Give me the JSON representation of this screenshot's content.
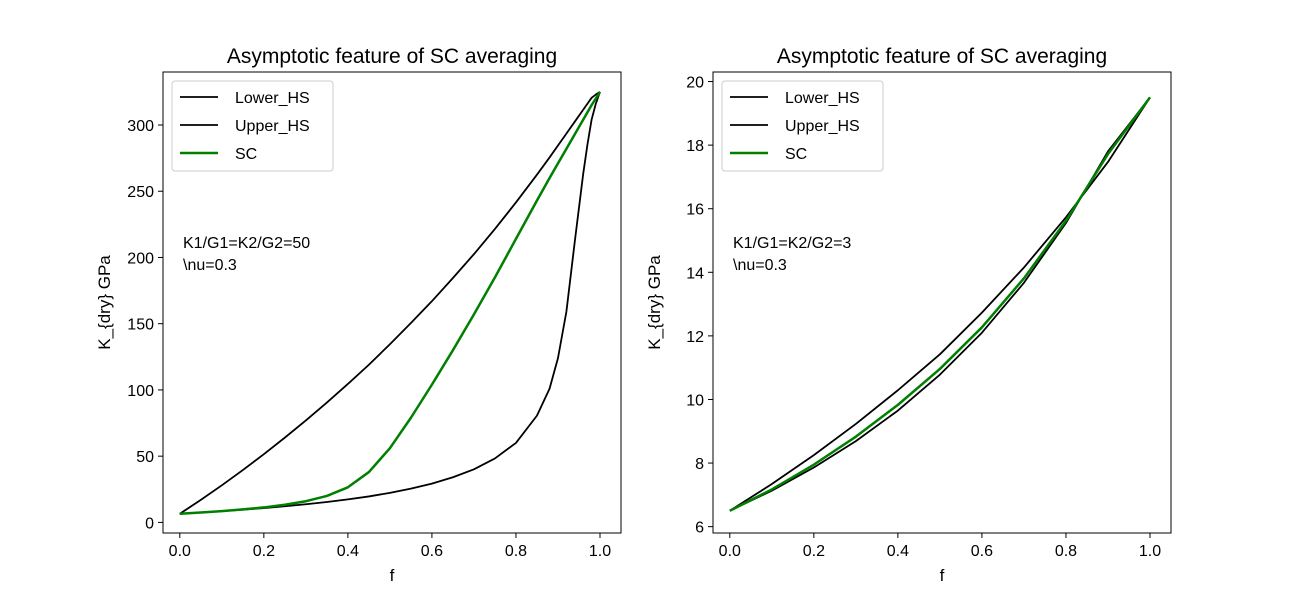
{
  "colors": {
    "lower_hs": "#000000",
    "upper_hs": "#000000",
    "sc": "#008000"
  },
  "chart_data": [
    {
      "type": "line",
      "title": "Asymptotic feature of SC averaging",
      "xlabel": "f",
      "ylabel": "K_{dry} GPa",
      "xlim": [
        -0.04,
        1.05
      ],
      "ylim": [
        -8,
        340
      ],
      "xticks": [
        "0.0",
        "0.2",
        "0.4",
        "0.6",
        "0.8",
        "1.0"
      ],
      "yticks": [
        "0",
        "50",
        "100",
        "150",
        "200",
        "250",
        "300"
      ],
      "legend_position": "upper-left",
      "annotation": [
        "K1/G1=K2/G2=50",
        "\\nu=0.3"
      ],
      "x": [
        0.0,
        0.05,
        0.1,
        0.15,
        0.2,
        0.25,
        0.3,
        0.35,
        0.4,
        0.45,
        0.5,
        0.55,
        0.6,
        0.65,
        0.7,
        0.75,
        0.8,
        0.85,
        0.88,
        0.9,
        0.92,
        0.94,
        0.96,
        0.97,
        0.98,
        0.99,
        1.0
      ],
      "series": [
        {
          "name": "Lower_HS",
          "values": [
            6.5,
            7.5,
            8.5,
            9.6,
            10.8,
            12.2,
            13.7,
            15.4,
            17.4,
            19.6,
            22.3,
            25.5,
            29.3,
            34.1,
            40.1,
            48.3,
            60.0,
            80.6,
            101,
            124,
            159,
            212,
            263,
            285,
            304,
            316,
            325
          ]
        },
        {
          "name": "Upper_HS",
          "values": [
            6.5,
            17.0,
            28.0,
            39.5,
            51.5,
            64.0,
            77.0,
            90.5,
            104.5,
            119.0,
            134.5,
            150.5,
            167.0,
            184.5,
            202.5,
            221.5,
            241.5,
            262.5,
            275.5,
            284.5,
            293.5,
            302.5,
            311.5,
            316.0,
            320.5,
            323.0,
            325
          ]
        },
        {
          "name": "SC",
          "values": [
            6.5,
            7.5,
            8.5,
            9.8,
            11.3,
            13.3,
            16.0,
            20.0,
            26.5,
            38.0,
            56.0,
            79.0,
            104.0,
            130.0,
            157.0,
            185.0,
            214.0,
            243.0,
            260.0,
            271.0,
            282.0,
            293.0,
            304.0,
            309.5,
            315.0,
            320.0,
            325
          ]
        }
      ]
    },
    {
      "type": "line",
      "title": "Asymptotic feature of SC averaging",
      "xlabel": "f",
      "ylabel": "K_{dry} GPa",
      "xlim": [
        -0.04,
        1.05
      ],
      "ylim": [
        5.8,
        20.3
      ],
      "xticks": [
        "0.0",
        "0.2",
        "0.4",
        "0.6",
        "0.8",
        "1.0"
      ],
      "yticks": [
        "6",
        "8",
        "10",
        "12",
        "14",
        "16",
        "18",
        "20"
      ],
      "legend_position": "upper-left",
      "annotation": [
        "K1/G1=K2/G2=3",
        "\\nu=0.3"
      ],
      "x": [
        0.0,
        0.1,
        0.2,
        0.3,
        0.4,
        0.5,
        0.6,
        0.7,
        0.8,
        0.9,
        1.0
      ],
      "series": [
        {
          "name": "Lower_HS",
          "values": [
            6.5,
            7.13,
            7.86,
            8.69,
            9.65,
            10.78,
            12.1,
            13.67,
            15.55,
            17.8,
            19.5
          ]
        },
        {
          "name": "Upper_HS",
          "values": [
            6.5,
            7.34,
            8.25,
            9.23,
            10.29,
            11.42,
            12.73,
            14.15,
            15.73,
            17.47,
            19.5
          ]
        },
        {
          "name": "SC",
          "values": [
            6.5,
            7.17,
            7.95,
            8.83,
            9.83,
            10.96,
            12.27,
            13.81,
            15.62,
            17.72,
            19.5
          ]
        }
      ]
    }
  ]
}
